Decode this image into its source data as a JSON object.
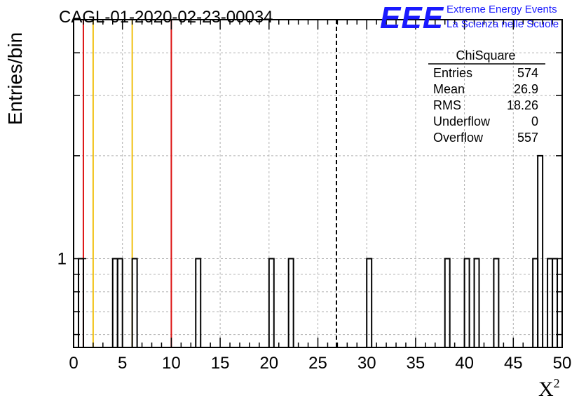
{
  "header": {
    "run_title": "CAGL-01-2020-02-23-00034",
    "logo_text": "EEE",
    "logo_line1": "Extreme Energy Events",
    "logo_line2": "La Scienza nelle Scuole",
    "brand_color": "#1a1aff"
  },
  "stats_box": {
    "title": "ChiSquare",
    "rows": [
      {
        "label": "Entries",
        "value": "574"
      },
      {
        "label": "Mean",
        "value": "26.9"
      },
      {
        "label": "RMS",
        "value": "18.26"
      },
      {
        "label": "Underflow",
        "value": "0"
      },
      {
        "label": "Overflow",
        "value": "557"
      }
    ]
  },
  "chart_data": {
    "type": "bar",
    "histogram_style": "step",
    "ylabel": "Entries/bin",
    "xlabel_base": "X",
    "xlabel_superscript": "2",
    "y_scale": "log",
    "xlim": [
      0,
      50
    ],
    "ylim": [
      0.55,
      5
    ],
    "grid": true,
    "bin_width": 0.5,
    "x_ticks": [
      0,
      5,
      10,
      15,
      20,
      25,
      30,
      35,
      40,
      45,
      50
    ],
    "x_tick_labels": [
      "0",
      "5",
      "10",
      "15",
      "20",
      "25",
      "30",
      "35",
      "40",
      "45",
      "50"
    ],
    "y_ticks": [
      1
    ],
    "y_tick_labels": [
      "1"
    ],
    "bins": [
      {
        "x": 0.5,
        "value": 1
      },
      {
        "x": 4.0,
        "value": 1
      },
      {
        "x": 4.5,
        "value": 1
      },
      {
        "x": 6.0,
        "value": 1
      },
      {
        "x": 12.5,
        "value": 1
      },
      {
        "x": 20.0,
        "value": 1
      },
      {
        "x": 22.0,
        "value": 1
      },
      {
        "x": 30.0,
        "value": 1
      },
      {
        "x": 38.0,
        "value": 1
      },
      {
        "x": 40.0,
        "value": 1
      },
      {
        "x": 41.0,
        "value": 1
      },
      {
        "x": 43.0,
        "value": 1
      },
      {
        "x": 47.0,
        "value": 1
      },
      {
        "x": 47.5,
        "value": 2
      },
      {
        "x": 48.5,
        "value": 1
      },
      {
        "x": 49.0,
        "value": 1
      }
    ],
    "reference_lines": [
      {
        "x": 1,
        "color": "#dd1111",
        "style": "solid"
      },
      {
        "x": 2,
        "color": "#f0c010",
        "style": "solid"
      },
      {
        "x": 6,
        "color": "#f0c010",
        "style": "solid"
      },
      {
        "x": 10,
        "color": "#dd1111",
        "style": "solid"
      },
      {
        "x": 26.9,
        "color": "#000000",
        "style": "dashed"
      }
    ]
  }
}
